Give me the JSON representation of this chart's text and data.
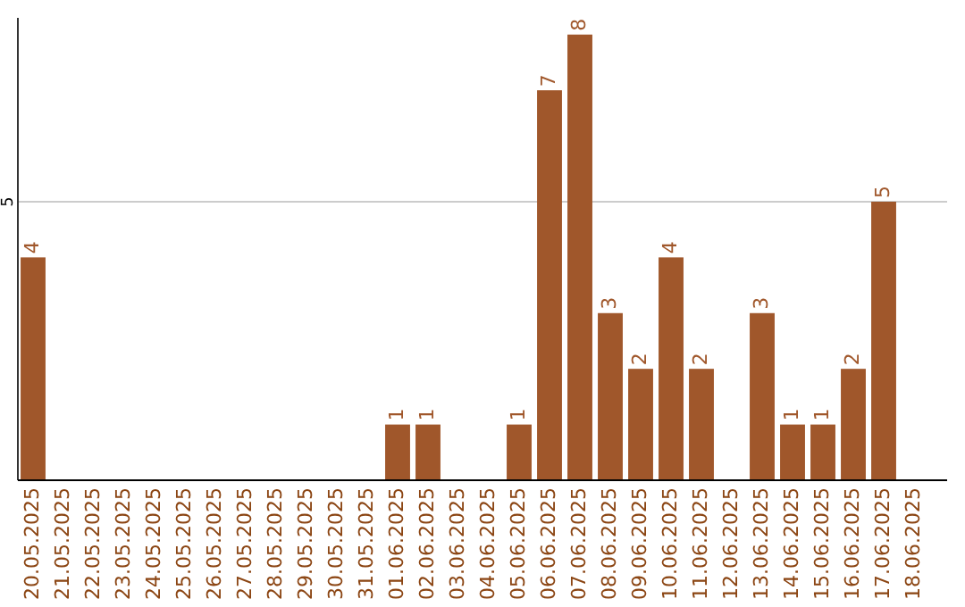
{
  "chart_data": {
    "type": "bar",
    "categories": [
      "20.05.2025",
      "21.05.2025",
      "22.05.2025",
      "23.05.2025",
      "24.05.2025",
      "25.05.2025",
      "26.05.2025",
      "27.05.2025",
      "28.05.2025",
      "29.05.2025",
      "30.05.2025",
      "31.05.2025",
      "01.06.2025",
      "02.06.2025",
      "03.06.2025",
      "04.06.2025",
      "05.06.2025",
      "06.06.2025",
      "07.06.2025",
      "08.06.2025",
      "09.06.2025",
      "10.06.2025",
      "11.06.2025",
      "12.06.2025",
      "13.06.2025",
      "14.06.2025",
      "15.06.2025",
      "16.06.2025",
      "17.06.2025",
      "18.06.2025"
    ],
    "values": [
      4,
      0,
      0,
      0,
      0,
      0,
      0,
      0,
      0,
      0,
      0,
      0,
      1,
      1,
      0,
      0,
      1,
      7,
      8,
      3,
      2,
      4,
      2,
      0,
      3,
      1,
      1,
      2,
      5,
      0
    ],
    "value_labels": [
      "4",
      null,
      null,
      null,
      null,
      null,
      null,
      null,
      null,
      null,
      null,
      null,
      "1",
      "1",
      null,
      null,
      "1",
      "7",
      "8",
      "3",
      "2",
      "4",
      "2",
      null,
      "3",
      "1",
      "1",
      "2",
      "5",
      null
    ],
    "color": "#a0572b",
    "ylim": [
      0,
      8.3
    ],
    "yticks": [
      5
    ],
    "grid": "y"
  }
}
